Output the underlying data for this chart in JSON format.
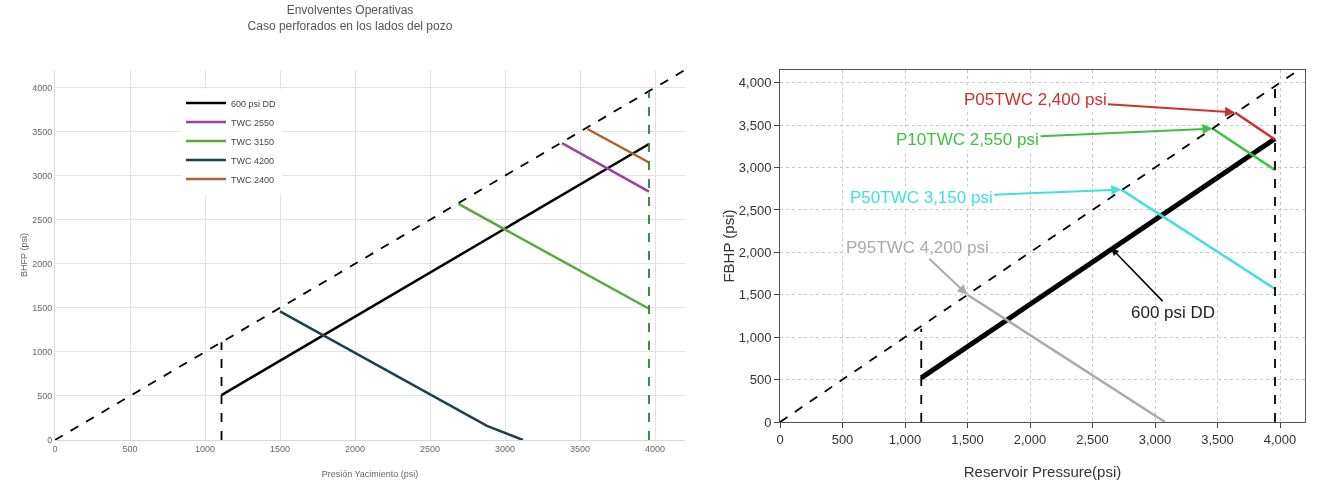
{
  "chart_data": [
    {
      "type": "line",
      "title": "Envolventes Operativas\nCaso perforados en los lados del pozo",
      "xlabel": "Presión Yacimiento (psi)",
      "ylabel": "BHFP (psi)",
      "xlim": [
        0,
        4200
      ],
      "ylim": [
        0,
        4200
      ],
      "xticks": [
        0,
        500,
        1000,
        1500,
        2000,
        2500,
        3000,
        3500,
        4000
      ],
      "yticks": [
        0,
        500,
        1000,
        1500,
        2000,
        2500,
        3000,
        3500,
        4000
      ],
      "grid": true,
      "legend": "top left",
      "series": [
        {
          "name": "600 psi DD",
          "color": "#000000",
          "x": [
            1110,
            3960
          ],
          "values": [
            510,
            3360
          ]
        },
        {
          "name": "TWC 2550",
          "color": "#a040a0",
          "x": [
            3380,
            3960
          ],
          "values": [
            3370,
            2820
          ]
        },
        {
          "name": "TWC 3150",
          "color": "#5aaa3a",
          "x": [
            2690,
            3960
          ],
          "values": [
            2680,
            1490
          ]
        },
        {
          "name": "TWC 4200",
          "color": "#1f3f4f",
          "x": [
            1500,
            2880,
            3120
          ],
          "values": [
            1460,
            160,
            0
          ]
        },
        {
          "name": "TWC 2400",
          "color": "#b0602a",
          "x": [
            3550,
            3960
          ],
          "values": [
            3530,
            3150
          ]
        },
        {
          "color": "#000000",
          "line_style": "dashed",
          "x": [
            0,
            4200
          ],
          "values": [
            0,
            4200
          ]
        },
        {
          "color": "#000000",
          "line_style": "dashed",
          "x": [
            1110,
            1110
          ],
          "values": [
            0,
            1110
          ]
        },
        {
          "color": "#2e7d32",
          "line_style": "dashed",
          "x": [
            3960,
            3960
          ],
          "values": [
            0,
            3960
          ]
        }
      ]
    },
    {
      "type": "line",
      "xlabel": "Reservoir Pressure(psi)",
      "ylabel": "FBHP (psi)",
      "xlim": [
        0,
        4200
      ],
      "ylim": [
        0,
        4150
      ],
      "grid": true,
      "legend": false,
      "xticks": [
        0,
        500,
        {
          "value": 1000,
          "label": "1,000"
        },
        {
          "value": 1500,
          "label": "1,500"
        },
        {
          "value": 2000,
          "label": "2,000"
        },
        {
          "value": 2500,
          "label": "2,500"
        },
        {
          "value": 3000,
          "label": "3,000"
        },
        {
          "value": 3500,
          "label": "3,500"
        },
        {
          "value": 4000,
          "label": "4,000"
        }
      ],
      "yticks": [
        0,
        500,
        {
          "value": 1000,
          "label": "1,000"
        },
        {
          "value": 1500,
          "label": "1,500"
        },
        {
          "value": 2000,
          "label": "2,000"
        },
        {
          "value": 2500,
          "label": "2,500"
        },
        {
          "value": 3000,
          "label": "3,000"
        },
        {
          "value": 3500,
          "label": "3,500"
        },
        {
          "value": 4000,
          "label": "4,000"
        }
      ],
      "series": [
        {
          "color": "#000000",
          "x": [
            1130,
            3960
          ],
          "values": [
            520,
            3340
          ]
        },
        {
          "name": "P05TWC 2,400 psi",
          "color": "#d03030",
          "x": [
            3640,
            3960
          ],
          "values": [
            3650,
            3330
          ]
        },
        {
          "name": "P10TWC 2,550 psi",
          "color": "#40c040",
          "x": [
            3460,
            3960
          ],
          "values": [
            3460,
            2970
          ]
        },
        {
          "name": "P50TWC 3,150 psi",
          "color": "#40e0e0",
          "x": [
            2730,
            3960
          ],
          "values": [
            2740,
            1570
          ]
        },
        {
          "name": "P95TWC 4,200 psi",
          "color": "#aaaaaa",
          "x": [
            1500,
            3080
          ],
          "values": [
            1500,
            0
          ]
        },
        {
          "color": "#000000",
          "line_style": "dashed",
          "x": [
            0,
            4150
          ],
          "values": [
            0,
            4150
          ]
        },
        {
          "color": "#000000",
          "line_style": "dashed",
          "x": [
            1130,
            1130
          ],
          "values": [
            0,
            1100
          ]
        },
        {
          "color": "#000000",
          "line_style": "dashed",
          "x": [
            3960,
            3960
          ],
          "values": [
            0,
            3960
          ]
        }
      ],
      "annotations": [
        {
          "text": "600 psi DD",
          "x": 2650,
          "y": 2050
        }
      ]
    }
  ]
}
